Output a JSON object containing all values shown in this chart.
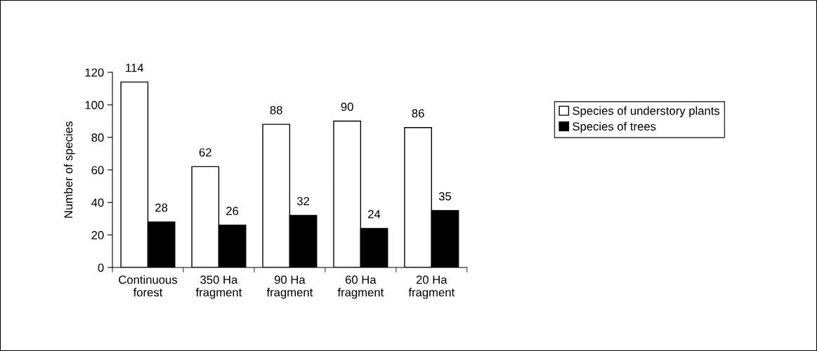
{
  "chart_data": {
    "type": "bar",
    "ylabel": "Number of species",
    "categories": [
      "Continuous\nforest",
      "350 Ha\nfragment",
      "90 Ha\nfragment",
      "60 Ha\nfragment",
      "20 Ha\nfragment"
    ],
    "series": [
      {
        "name": "Species of understory plants",
        "color": "#ffffff",
        "values": [
          114,
          62,
          88,
          90,
          86
        ]
      },
      {
        "name": "Species of trees",
        "color": "#000000",
        "values": [
          28,
          26,
          32,
          24,
          35
        ]
      }
    ],
    "ylim": [
      0,
      120
    ],
    "yticks": [
      0,
      20,
      40,
      60,
      80,
      100,
      120
    ],
    "data_labels": true,
    "legend": "right",
    "grid": false
  }
}
